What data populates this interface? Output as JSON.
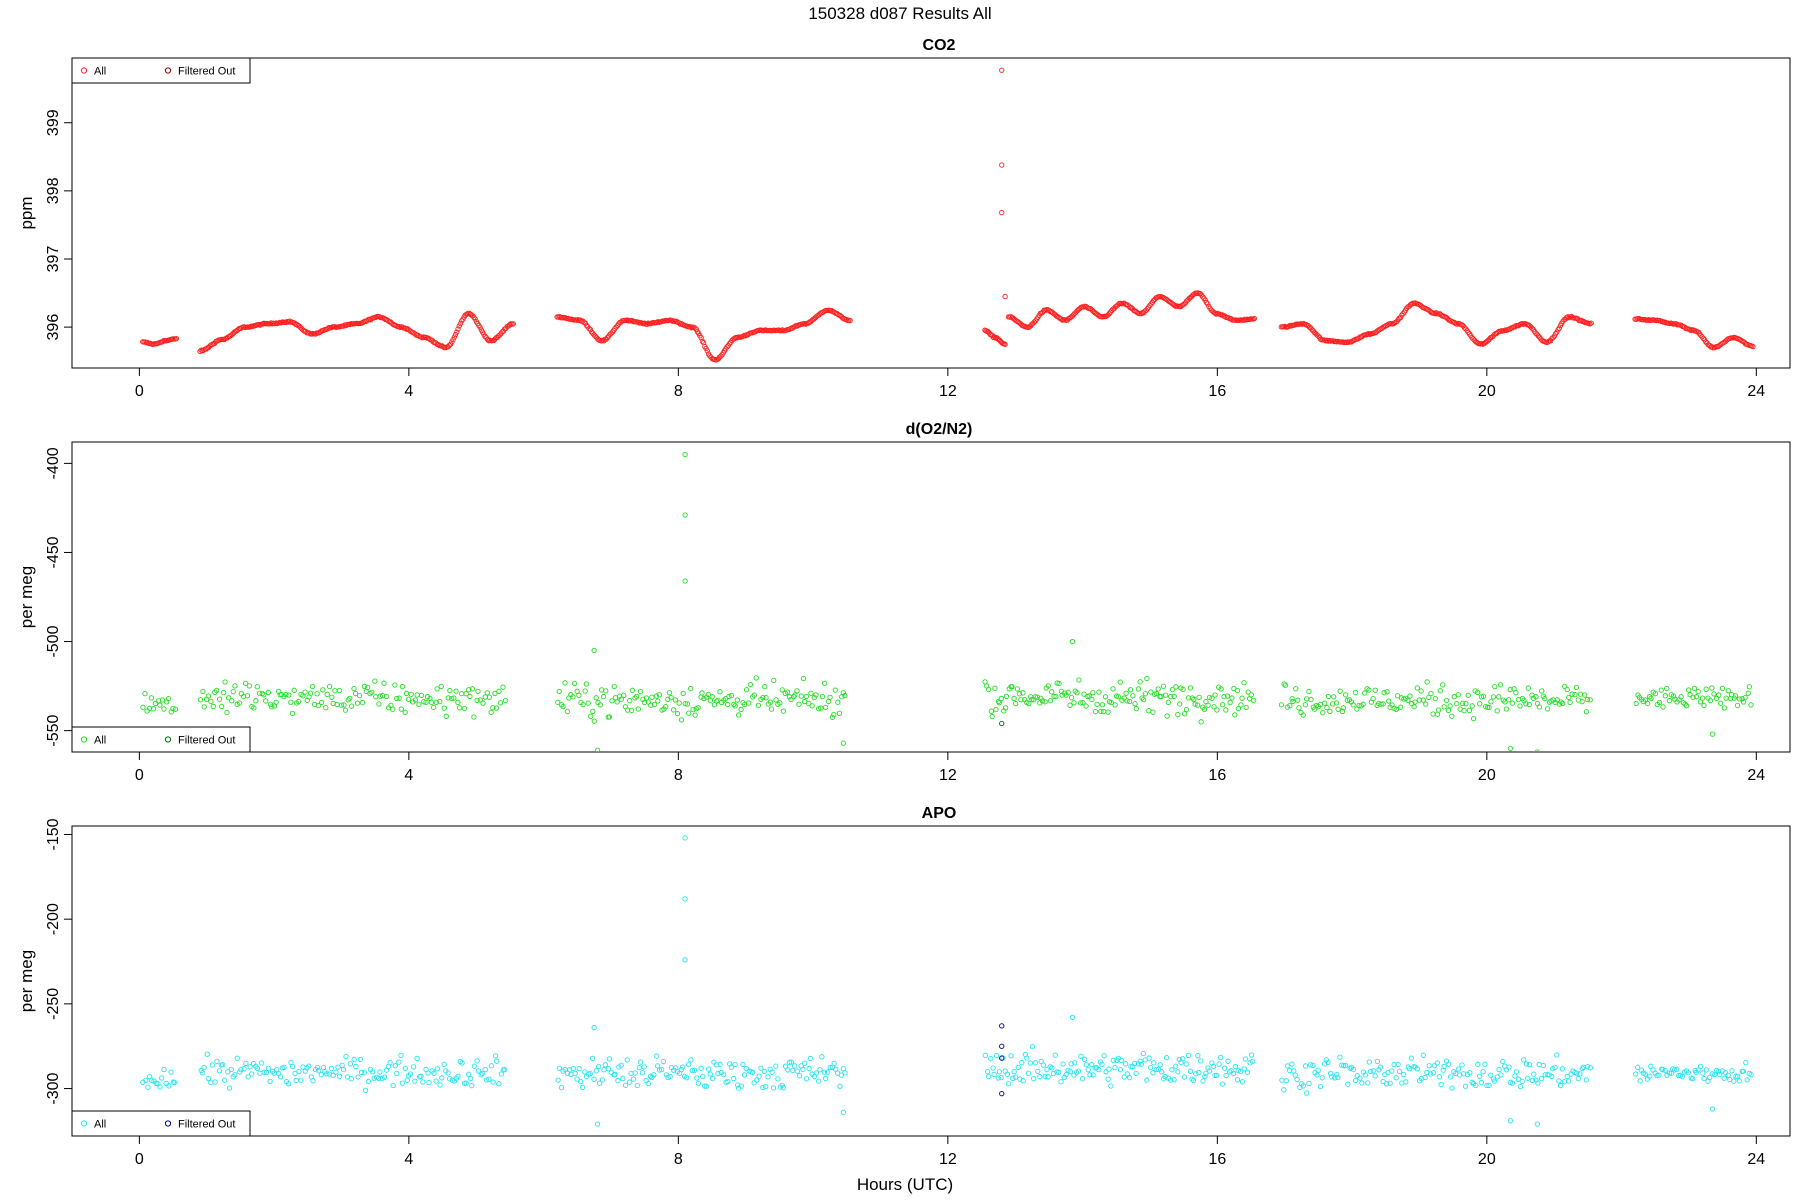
{
  "figure": {
    "title": "150328   d087   Results All",
    "xlabel": "Hours (UTC)"
  },
  "chart_data": [
    {
      "type": "scatter",
      "title": "CO2",
      "xlabel": "",
      "ylabel": "ppm",
      "xlim": [
        -1,
        24.5
      ],
      "ylim": [
        395.4,
        399.95
      ],
      "xticks": [
        0,
        4,
        8,
        12,
        16,
        20,
        24
      ],
      "yticks": [
        396,
        397,
        398,
        399
      ],
      "legend": {
        "position": "top-left",
        "entries": [
          "All",
          "Filtered Out"
        ]
      },
      "colors": {
        "all": "#ff2020",
        "filtered": "#8b0000"
      },
      "segments": [
        {
          "x0": 0.05,
          "x1": 0.55,
          "anchors": [
            395.78,
            395.75,
            395.8,
            395.83
          ]
        },
        {
          "x0": 0.9,
          "x1": 5.55,
          "anchors": [
            395.65,
            395.82,
            396.0,
            396.05,
            396.08,
            395.9,
            396.0,
            396.05,
            396.15,
            396.0,
            395.85,
            395.7,
            396.2,
            395.8,
            396.05
          ]
        },
        {
          "x0": 6.2,
          "x1": 10.55,
          "anchors": [
            396.15,
            396.1,
            395.8,
            396.1,
            396.05,
            396.1,
            396.0,
            395.52,
            395.85,
            395.95,
            395.95,
            396.05,
            396.25,
            396.1
          ]
        },
        {
          "x0": 12.55,
          "x1": 12.85,
          "anchors": [
            395.95,
            395.85,
            395.75
          ]
        },
        {
          "x0": 12.9,
          "x1": 16.55,
          "anchors": [
            396.15,
            396.0,
            396.25,
            396.1,
            396.3,
            396.15,
            396.35,
            396.2,
            396.45,
            396.3,
            396.5,
            396.2,
            396.1,
            396.12
          ]
        },
        {
          "x0": 16.95,
          "x1": 21.55,
          "anchors": [
            396.0,
            396.05,
            395.8,
            395.78,
            395.9,
            396.05,
            396.35,
            396.2,
            396.05,
            395.75,
            395.95,
            396.05,
            395.78,
            396.15,
            396.05
          ]
        },
        {
          "x0": 22.2,
          "x1": 23.95,
          "anchors": [
            396.12,
            396.1,
            396.05,
            395.95,
            395.7,
            395.85,
            395.72
          ]
        }
      ],
      "outliers": [
        {
          "x": 12.8,
          "y": 399.77
        },
        {
          "x": 12.8,
          "y": 398.38
        },
        {
          "x": 12.8,
          "y": 397.68
        },
        {
          "x": 12.85,
          "y": 396.45
        }
      ],
      "filtered_points": []
    },
    {
      "type": "scatter",
      "title": "d(O2/N2)",
      "xlabel": "",
      "ylabel": "per meg",
      "xlim": [
        -1,
        24.5
      ],
      "ylim": [
        -562,
        -388
      ],
      "xticks": [
        0,
        4,
        8,
        12,
        16,
        20,
        24
      ],
      "yticks": [
        -400,
        -450,
        -500,
        -550
      ],
      "legend": {
        "position": "bottom-left",
        "entries": [
          "All",
          "Filtered Out"
        ]
      },
      "colors": {
        "all": "#22dd22",
        "filtered": "#006400"
      },
      "segments": [
        {
          "x0": 0.05,
          "x1": 0.55,
          "center": -535,
          "spread": 12,
          "n": 16
        },
        {
          "x0": 0.9,
          "x1": 5.45,
          "center": -532,
          "spread": 14,
          "n": 150
        },
        {
          "x0": 6.2,
          "x1": 10.5,
          "center": -533,
          "spread": 16,
          "n": 150
        },
        {
          "x0": 12.55,
          "x1": 16.55,
          "center": -531,
          "spread": 16,
          "n": 150
        },
        {
          "x0": 16.95,
          "x1": 21.55,
          "center": -533,
          "spread": 15,
          "n": 160
        },
        {
          "x0": 22.2,
          "x1": 23.95,
          "center": -532,
          "spread": 10,
          "n": 60
        }
      ],
      "outliers": [
        {
          "x": 8.1,
          "y": -395
        },
        {
          "x": 8.1,
          "y": -429
        },
        {
          "x": 8.1,
          "y": -466
        },
        {
          "x": 6.75,
          "y": -505
        },
        {
          "x": 6.8,
          "y": -561
        },
        {
          "x": 10.45,
          "y": -557
        },
        {
          "x": 13.85,
          "y": -500
        },
        {
          "x": 20.35,
          "y": -560
        },
        {
          "x": 20.75,
          "y": -562
        },
        {
          "x": 23.35,
          "y": -552
        }
      ],
      "filtered_points": [
        {
          "x": 12.8,
          "y": -546
        }
      ]
    },
    {
      "type": "scatter",
      "title": "APO",
      "xlabel": "Hours (UTC)",
      "ylabel": "per meg",
      "xlim": [
        -1,
        24.5
      ],
      "ylim": [
        -328,
        -145
      ],
      "xticks": [
        0,
        4,
        8,
        12,
        16,
        20,
        24
      ],
      "yticks": [
        -150,
        -200,
        -250,
        -300
      ],
      "legend": {
        "position": "bottom-left",
        "entries": [
          "All",
          "Filtered Out"
        ]
      },
      "colors": {
        "all": "#22e5f0",
        "filtered": "#00008b"
      },
      "segments": [
        {
          "x0": 0.05,
          "x1": 0.55,
          "center": -294,
          "spread": 12,
          "n": 16
        },
        {
          "x0": 0.9,
          "x1": 5.45,
          "center": -290,
          "spread": 14,
          "n": 150
        },
        {
          "x0": 6.2,
          "x1": 10.5,
          "center": -291,
          "spread": 16,
          "n": 150
        },
        {
          "x0": 12.55,
          "x1": 16.55,
          "center": -288,
          "spread": 16,
          "n": 150
        },
        {
          "x0": 16.95,
          "x1": 21.55,
          "center": -291,
          "spread": 15,
          "n": 160
        },
        {
          "x0": 22.2,
          "x1": 23.95,
          "center": -291,
          "spread": 10,
          "n": 60
        }
      ],
      "outliers": [
        {
          "x": 8.1,
          "y": -152
        },
        {
          "x": 8.1,
          "y": -188
        },
        {
          "x": 8.1,
          "y": -224
        },
        {
          "x": 6.75,
          "y": -264
        },
        {
          "x": 6.8,
          "y": -321
        },
        {
          "x": 10.45,
          "y": -314
        },
        {
          "x": 13.85,
          "y": -258
        },
        {
          "x": 20.35,
          "y": -319
        },
        {
          "x": 20.75,
          "y": -321
        },
        {
          "x": 23.35,
          "y": -312
        }
      ],
      "filtered_points": [
        {
          "x": 12.8,
          "y": -263
        },
        {
          "x": 12.8,
          "y": -275
        },
        {
          "x": 12.8,
          "y": -282
        },
        {
          "x": 12.8,
          "y": -303
        }
      ]
    }
  ]
}
